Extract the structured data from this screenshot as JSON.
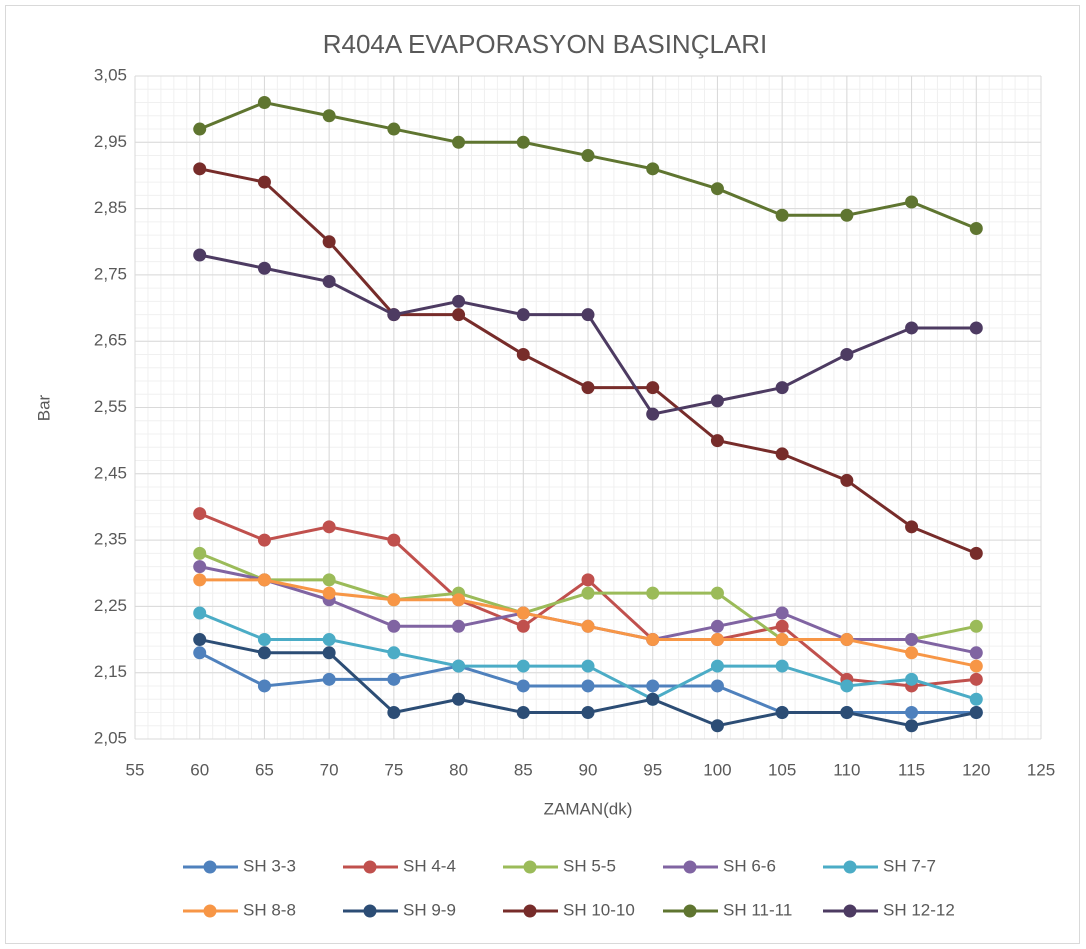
{
  "chart_data": {
    "type": "line",
    "title": "R404A EVAPORASYON BASINÇLARI",
    "xlabel": "ZAMAN(dk)",
    "ylabel": "Bar",
    "x": [
      60,
      65,
      70,
      75,
      80,
      85,
      90,
      95,
      100,
      105,
      110,
      115,
      120
    ],
    "xlim": [
      55,
      125
    ],
    "xticks": [
      55,
      60,
      65,
      70,
      75,
      80,
      85,
      90,
      95,
      100,
      105,
      110,
      115,
      120,
      125
    ],
    "ylim": [
      2.05,
      3.05
    ],
    "yticks": [
      {
        "value": 2.05,
        "label": "2,05"
      },
      {
        "value": 2.15,
        "label": "2,15"
      },
      {
        "value": 2.25,
        "label": "2,25"
      },
      {
        "value": 2.35,
        "label": "2,35"
      },
      {
        "value": 2.45,
        "label": "2,45"
      },
      {
        "value": 2.55,
        "label": "2,55"
      },
      {
        "value": 2.65,
        "label": "2,65"
      },
      {
        "value": 2.75,
        "label": "2,75"
      },
      {
        "value": 2.85,
        "label": "2,85"
      },
      {
        "value": 2.95,
        "label": "2,95"
      },
      {
        "value": 3.05,
        "label": "3,05"
      }
    ],
    "grid": true,
    "legend": "bottom",
    "series": [
      {
        "name": "SH 3-3",
        "color": "#4f81bd",
        "values": [
          2.18,
          2.13,
          2.14,
          2.14,
          2.16,
          2.13,
          2.13,
          2.13,
          2.13,
          2.09,
          2.09,
          2.09,
          2.09
        ]
      },
      {
        "name": "SH 4-4",
        "color": "#c0504d",
        "values": [
          2.39,
          2.35,
          2.37,
          2.35,
          2.26,
          2.22,
          2.29,
          2.2,
          2.2,
          2.22,
          2.14,
          2.13,
          2.14
        ]
      },
      {
        "name": "SH 5-5",
        "color": "#9bbb59",
        "values": [
          2.33,
          2.29,
          2.29,
          2.26,
          2.27,
          2.24,
          2.27,
          2.27,
          2.27,
          2.2,
          2.2,
          2.2,
          2.22
        ]
      },
      {
        "name": "SH 6-6",
        "color": "#8064a2",
        "values": [
          2.31,
          2.29,
          2.26,
          2.22,
          2.22,
          2.24,
          2.22,
          2.2,
          2.22,
          2.24,
          2.2,
          2.2,
          2.18
        ]
      },
      {
        "name": "SH 7-7",
        "color": "#4bacc6",
        "values": [
          2.24,
          2.2,
          2.2,
          2.18,
          2.16,
          2.16,
          2.16,
          2.11,
          2.16,
          2.16,
          2.13,
          2.14,
          2.11
        ]
      },
      {
        "name": "SH 8-8",
        "color": "#f79646",
        "values": [
          2.29,
          2.29,
          2.27,
          2.26,
          2.26,
          2.24,
          2.22,
          2.2,
          2.2,
          2.2,
          2.2,
          2.18,
          2.16
        ]
      },
      {
        "name": "SH 9-9",
        "color": "#2c4d75",
        "values": [
          2.2,
          2.18,
          2.18,
          2.09,
          2.11,
          2.09,
          2.09,
          2.11,
          2.07,
          2.09,
          2.09,
          2.07,
          2.09
        ]
      },
      {
        "name": "SH 10-10",
        "color": "#772c2a",
        "values": [
          2.91,
          2.89,
          2.8,
          2.69,
          2.69,
          2.63,
          2.58,
          2.58,
          2.5,
          2.48,
          2.44,
          2.37,
          2.33
        ]
      },
      {
        "name": "SH 11-11",
        "color": "#5f7530",
        "values": [
          2.97,
          3.01,
          2.99,
          2.97,
          2.95,
          2.95,
          2.93,
          2.91,
          2.88,
          2.84,
          2.84,
          2.86,
          2.82
        ]
      },
      {
        "name": "SH 12-12",
        "color": "#4d3b62",
        "values": [
          2.78,
          2.76,
          2.74,
          2.69,
          2.71,
          2.69,
          2.69,
          2.54,
          2.56,
          2.58,
          2.63,
          2.67,
          2.67
        ]
      }
    ]
  }
}
